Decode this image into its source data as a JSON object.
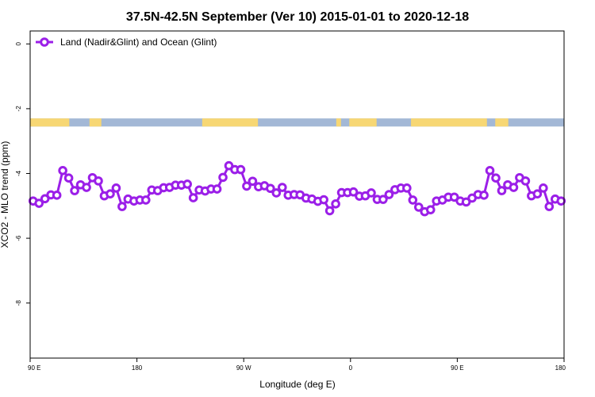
{
  "chart_data": {
    "type": "line",
    "title": "37.5N-42.5N September (Ver 10)   2015-01-01 to 2020-12-18",
    "xlabel": "Longitude (deg E)",
    "ylabel": "XCO2 - MLO trend (ppm)",
    "xlim": [
      90,
      540
    ],
    "ylim": [
      -9.7,
      0.4
    ],
    "x_ticks": [
      {
        "value": 90,
        "label": "90 E"
      },
      {
        "value": 180,
        "label": "180"
      },
      {
        "value": 270,
        "label": "90 W"
      },
      {
        "value": 360,
        "label": "0"
      },
      {
        "value": 450,
        "label": "90 E"
      },
      {
        "value": 540,
        "label": "180"
      }
    ],
    "y_ticks": [
      {
        "value": 0,
        "label": "0"
      },
      {
        "value": -2,
        "label": "-2"
      },
      {
        "value": -4,
        "label": "-4"
      },
      {
        "value": -6,
        "label": "-6"
      },
      {
        "value": -8,
        "label": "-8"
      }
    ],
    "legend": {
      "placement": "top-left"
    },
    "land_mask": {
      "y_range": [
        -2.55,
        -2.3
      ],
      "ocean_color": "#a3b8d6",
      "land_color": "#f7d774",
      "land_segments": [
        [
          90,
          123
        ],
        [
          140,
          150
        ],
        [
          235,
          282
        ],
        [
          348,
          352
        ],
        [
          359,
          382
        ],
        [
          411,
          475
        ],
        [
          482,
          493
        ]
      ]
    },
    "series": [
      {
        "name": "Land (Nadir&Glint) and Ocean (Glint)",
        "color": "#9b1fe8",
        "x": [
          92.5,
          97.5,
          102.5,
          107.5,
          112.5,
          117.5,
          122.5,
          127.5,
          132.5,
          137.5,
          142.5,
          147.5,
          152.5,
          157.5,
          162.5,
          167.5,
          172.5,
          177.5,
          182.5,
          187.5,
          192.5,
          197.5,
          202.5,
          207.5,
          212.5,
          217.5,
          222.5,
          227.5,
          232.5,
          237.5,
          242.5,
          247.5,
          252.5,
          257.5,
          262.5,
          267.5,
          272.5,
          277.5,
          282.5,
          287.5,
          292.5,
          297.5,
          302.5,
          307.5,
          312.5,
          317.5,
          322.5,
          327.5,
          332.5,
          337.5,
          342.5,
          347.5,
          352.5,
          357.5,
          362.5,
          367.5,
          372.5,
          377.5,
          382.5,
          387.5,
          392.5,
          397.5,
          402.5,
          407.5,
          412.5,
          417.5,
          422.5,
          427.5,
          432.5,
          437.5,
          442.5,
          447.5,
          452.5,
          457.5,
          462.5,
          467.5,
          472.5,
          477.5,
          482.5,
          487.5,
          492.5,
          497.5,
          502.5,
          507.5,
          512.5,
          517.5,
          522.5,
          527.5,
          532.5,
          537.5
        ],
        "y": [
          -4.85,
          -4.92,
          -4.78,
          -4.66,
          -4.67,
          -3.91,
          -4.14,
          -4.53,
          -4.35,
          -4.43,
          -4.13,
          -4.23,
          -4.69,
          -4.63,
          -4.45,
          -5.02,
          -4.79,
          -4.85,
          -4.82,
          -4.82,
          -4.51,
          -4.53,
          -4.44,
          -4.43,
          -4.36,
          -4.36,
          -4.33,
          -4.75,
          -4.51,
          -4.54,
          -4.48,
          -4.48,
          -4.12,
          -3.76,
          -3.88,
          -3.88,
          -4.39,
          -4.24,
          -4.41,
          -4.38,
          -4.46,
          -4.6,
          -4.43,
          -4.67,
          -4.65,
          -4.66,
          -4.76,
          -4.79,
          -4.86,
          -4.81,
          -5.15,
          -4.94,
          -4.59,
          -4.59,
          -4.57,
          -4.7,
          -4.69,
          -4.6,
          -4.8,
          -4.8,
          -4.65,
          -4.5,
          -4.45,
          -4.45,
          -4.82,
          -5.04,
          -5.18,
          -5.12,
          -4.85,
          -4.82,
          -4.73,
          -4.73,
          -4.85,
          -4.88,
          -4.76,
          -4.65,
          -4.67,
          -3.91,
          -4.14,
          -4.53,
          -4.35,
          -4.43,
          -4.13,
          -4.23,
          -4.69,
          -4.63,
          -4.45,
          -5.02,
          -4.79,
          -4.85
        ]
      }
    ]
  }
}
